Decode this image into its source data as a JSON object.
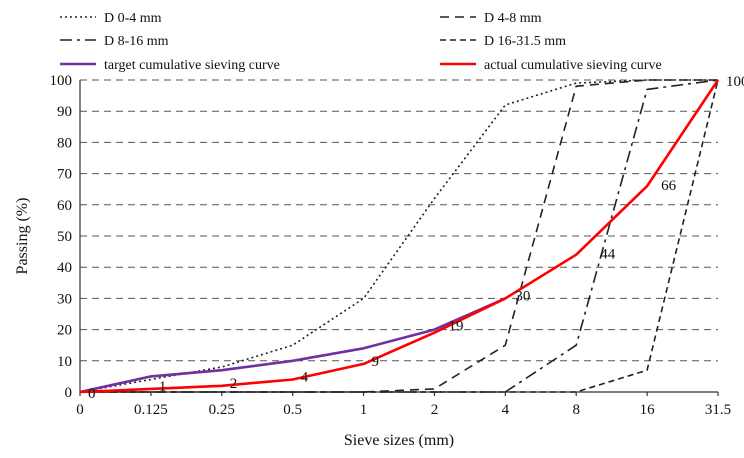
{
  "chart_data": {
    "type": "line",
    "title": "",
    "xlabel": "Sieve sizes (mm)",
    "ylabel": "Passing (%)",
    "categories": [
      "0",
      "0.125",
      "0.25",
      "0.5",
      "1",
      "2",
      "4",
      "8",
      "16",
      "31.5"
    ],
    "ylim": [
      0,
      100
    ],
    "yticks": [
      "0",
      "10",
      "20",
      "30",
      "40",
      "50",
      "60",
      "70",
      "80",
      "90",
      "100"
    ],
    "grid": true,
    "legend_position": "top",
    "series": [
      {
        "name": "D 0-4 mm",
        "color": "#222222",
        "style": "dotted",
        "values": [
          0,
          4,
          8,
          15,
          30,
          62,
          92,
          99,
          100,
          100
        ]
      },
      {
        "name": "D 4-8 mm",
        "color": "#222222",
        "style": "dashed",
        "values": [
          0,
          0,
          0,
          0,
          0,
          1,
          15,
          98,
          100,
          100
        ]
      },
      {
        "name": "D 8-16 mm",
        "color": "#222222",
        "style": "dashdot",
        "values": [
          0,
          0,
          0,
          0,
          0,
          0,
          0,
          15,
          97,
          100
        ]
      },
      {
        "name": "D 16-31.5 mm",
        "color": "#222222",
        "style": "dashed-dense",
        "values": [
          0,
          0,
          0,
          0,
          0,
          0,
          0,
          0,
          7,
          100
        ]
      },
      {
        "name": "target cumulative sieving curve",
        "color": "#7030a0",
        "style": "solid",
        "values": [
          0,
          5,
          7,
          10,
          14,
          20,
          30,
          null,
          null,
          null
        ]
      },
      {
        "name": "actual cumulative sieving curve",
        "color": "#ff0000",
        "style": "solid",
        "values": [
          0,
          1,
          2,
          4,
          9,
          19,
          30,
          44,
          66,
          100
        ]
      }
    ],
    "data_labels": [
      "0",
      "1",
      "2",
      "4",
      "9",
      "19",
      "30",
      "44",
      "66",
      "100"
    ]
  }
}
